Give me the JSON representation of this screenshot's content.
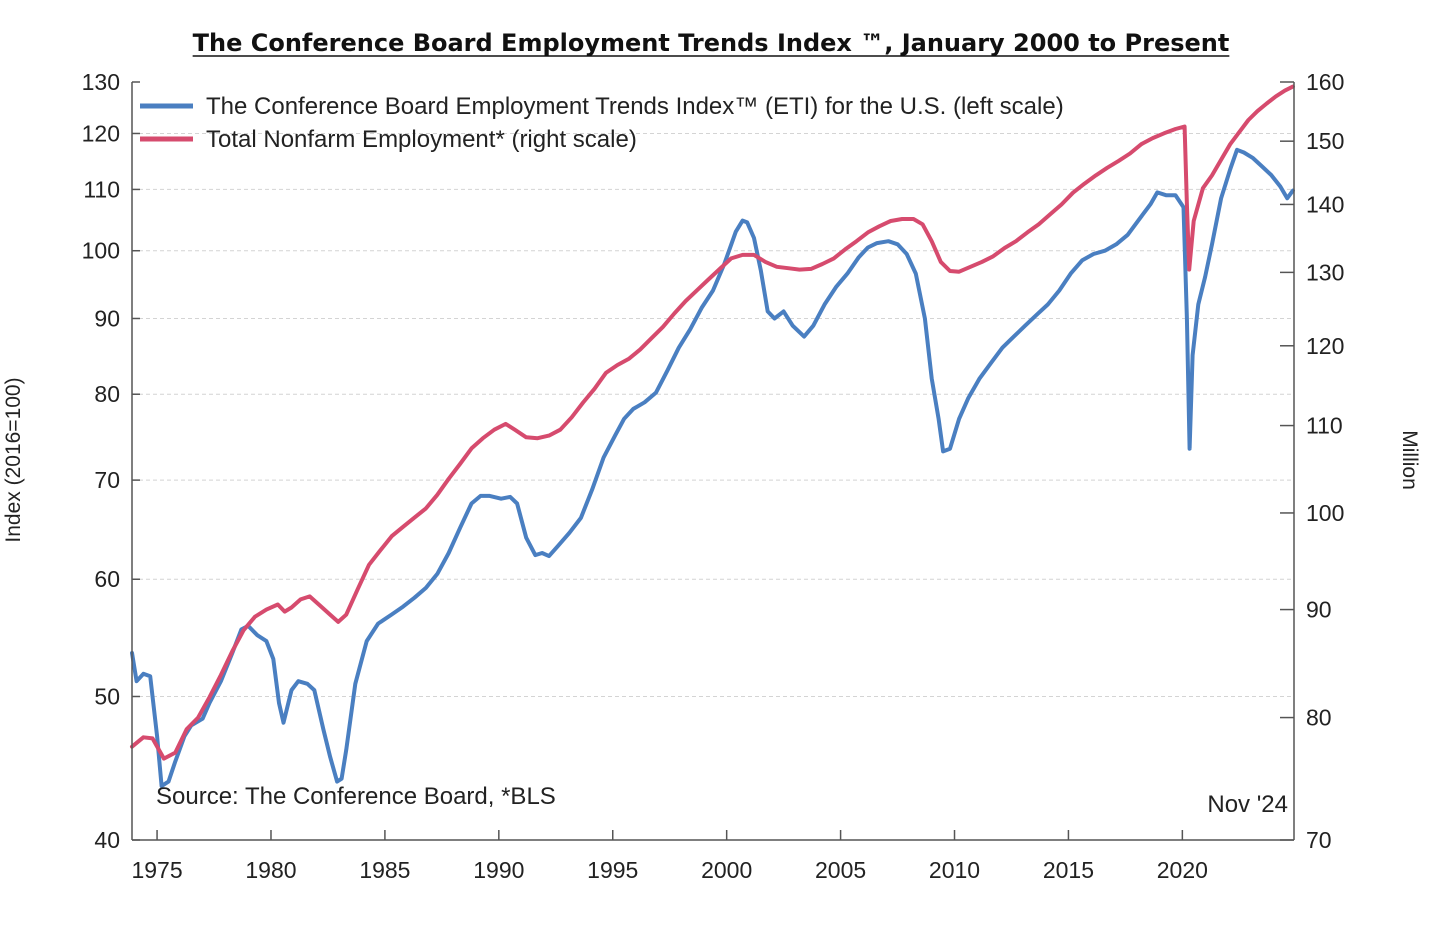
{
  "chart_data": {
    "type": "line",
    "title": "The Conference Board Employment Trends Index ™, January 2000 to Present",
    "ylabel": "Index (2016=100)",
    "y2label": "Million",
    "xlim": [
      1973.9,
      2024.9
    ],
    "ylim": [
      40,
      130
    ],
    "y2lim": [
      70,
      160
    ],
    "yscale": "log",
    "y2scale": "log",
    "grid": true,
    "legend_position": "top-left",
    "x_ticks": [
      1975,
      1980,
      1985,
      1990,
      1995,
      2000,
      2005,
      2010,
      2015,
      2020
    ],
    "y_ticks": [
      40,
      50,
      60,
      70,
      80,
      90,
      100,
      110,
      120,
      130
    ],
    "y2_ticks": [
      70,
      80,
      90,
      100,
      110,
      120,
      130,
      140,
      150,
      160
    ],
    "series": [
      {
        "name": "The Conference Board Employment Trends Index™ (ETI) for the U.S. (left scale)",
        "axis": "left",
        "color": "#4a7fc1",
        "points": [
          [
            1973.9,
            53.5
          ],
          [
            1974.1,
            51.2
          ],
          [
            1974.4,
            51.8
          ],
          [
            1974.7,
            51.6
          ],
          [
            1975.0,
            47.0
          ],
          [
            1975.2,
            43.5
          ],
          [
            1975.5,
            43.8
          ],
          [
            1975.8,
            45.2
          ],
          [
            1976.2,
            47.0
          ],
          [
            1976.5,
            47.8
          ],
          [
            1977.0,
            48.3
          ],
          [
            1977.3,
            49.5
          ],
          [
            1977.8,
            51.2
          ],
          [
            1978.3,
            53.5
          ],
          [
            1978.7,
            55.5
          ],
          [
            1979.0,
            55.8
          ],
          [
            1979.4,
            55.0
          ],
          [
            1979.8,
            54.5
          ],
          [
            1980.1,
            53.0
          ],
          [
            1980.35,
            49.5
          ],
          [
            1980.55,
            48.0
          ],
          [
            1980.9,
            50.5
          ],
          [
            1981.2,
            51.2
          ],
          [
            1981.6,
            51.0
          ],
          [
            1981.9,
            50.5
          ],
          [
            1982.3,
            47.5
          ],
          [
            1982.6,
            45.5
          ],
          [
            1982.9,
            43.8
          ],
          [
            1983.1,
            44.0
          ],
          [
            1983.3,
            46.0
          ],
          [
            1983.7,
            51.0
          ],
          [
            1984.2,
            54.5
          ],
          [
            1984.7,
            56.0
          ],
          [
            1985.3,
            56.8
          ],
          [
            1985.8,
            57.5
          ],
          [
            1986.3,
            58.3
          ],
          [
            1986.8,
            59.2
          ],
          [
            1987.3,
            60.5
          ],
          [
            1987.8,
            62.5
          ],
          [
            1988.3,
            65.0
          ],
          [
            1988.8,
            67.5
          ],
          [
            1989.2,
            68.3
          ],
          [
            1989.6,
            68.3
          ],
          [
            1990.1,
            68.0
          ],
          [
            1990.5,
            68.2
          ],
          [
            1990.8,
            67.5
          ],
          [
            1991.2,
            64.0
          ],
          [
            1991.6,
            62.3
          ],
          [
            1991.9,
            62.5
          ],
          [
            1992.2,
            62.2
          ],
          [
            1992.6,
            63.2
          ],
          [
            1993.1,
            64.5
          ],
          [
            1993.6,
            66.0
          ],
          [
            1994.1,
            69.0
          ],
          [
            1994.6,
            72.5
          ],
          [
            1995.1,
            75.0
          ],
          [
            1995.5,
            77.0
          ],
          [
            1995.9,
            78.2
          ],
          [
            1996.4,
            79.0
          ],
          [
            1996.9,
            80.2
          ],
          [
            1997.4,
            83.0
          ],
          [
            1997.9,
            86.0
          ],
          [
            1998.4,
            88.5
          ],
          [
            1998.9,
            91.5
          ],
          [
            1999.4,
            94.0
          ],
          [
            1999.9,
            98.0
          ],
          [
            2000.4,
            103.0
          ],
          [
            2000.7,
            104.8
          ],
          [
            2000.9,
            104.5
          ],
          [
            2001.2,
            102.0
          ],
          [
            2001.5,
            97.0
          ],
          [
            2001.8,
            91.0
          ],
          [
            2002.1,
            90.0
          ],
          [
            2002.5,
            91.0
          ],
          [
            2002.9,
            89.0
          ],
          [
            2003.4,
            87.5
          ],
          [
            2003.8,
            89.0
          ],
          [
            2004.3,
            92.0
          ],
          [
            2004.8,
            94.5
          ],
          [
            2005.3,
            96.5
          ],
          [
            2005.8,
            99.0
          ],
          [
            2006.2,
            100.5
          ],
          [
            2006.6,
            101.2
          ],
          [
            2007.1,
            101.5
          ],
          [
            2007.5,
            101.0
          ],
          [
            2007.9,
            99.5
          ],
          [
            2008.3,
            96.5
          ],
          [
            2008.7,
            90.0
          ],
          [
            2009.0,
            82.0
          ],
          [
            2009.3,
            77.0
          ],
          [
            2009.5,
            73.2
          ],
          [
            2009.8,
            73.5
          ],
          [
            2010.2,
            77.0
          ],
          [
            2010.6,
            79.5
          ],
          [
            2011.1,
            82.0
          ],
          [
            2011.6,
            84.0
          ],
          [
            2012.1,
            86.0
          ],
          [
            2012.6,
            87.5
          ],
          [
            2013.1,
            89.0
          ],
          [
            2013.6,
            90.5
          ],
          [
            2014.1,
            92.0
          ],
          [
            2014.6,
            94.0
          ],
          [
            2015.1,
            96.5
          ],
          [
            2015.6,
            98.5
          ],
          [
            2016.1,
            99.5
          ],
          [
            2016.6,
            100.0
          ],
          [
            2017.1,
            101.0
          ],
          [
            2017.6,
            102.5
          ],
          [
            2018.1,
            105.0
          ],
          [
            2018.6,
            107.5
          ],
          [
            2018.9,
            109.5
          ],
          [
            2019.3,
            109.0
          ],
          [
            2019.7,
            109.0
          ],
          [
            2020.05,
            107.0
          ],
          [
            2020.2,
            90.0
          ],
          [
            2020.32,
            73.5
          ],
          [
            2020.45,
            85.0
          ],
          [
            2020.7,
            92.0
          ],
          [
            2021.0,
            96.0
          ],
          [
            2021.3,
            101.0
          ],
          [
            2021.7,
            108.5
          ],
          [
            2022.1,
            113.5
          ],
          [
            2022.4,
            117.0
          ],
          [
            2022.7,
            116.5
          ],
          [
            2023.1,
            115.5
          ],
          [
            2023.5,
            114.0
          ],
          [
            2023.9,
            112.5
          ],
          [
            2024.3,
            110.5
          ],
          [
            2024.6,
            108.5
          ],
          [
            2024.85,
            109.8
          ]
        ]
      },
      {
        "name": "Total Nonfarm Employment* (right scale)",
        "axis": "right",
        "color": "#d64b6e",
        "points": [
          [
            1973.9,
            77.5
          ],
          [
            1974.4,
            78.3
          ],
          [
            1974.8,
            78.2
          ],
          [
            1975.3,
            76.5
          ],
          [
            1975.8,
            77.0
          ],
          [
            1976.3,
            79.0
          ],
          [
            1976.8,
            80.0
          ],
          [
            1977.3,
            81.8
          ],
          [
            1977.8,
            83.8
          ],
          [
            1978.3,
            86.0
          ],
          [
            1978.8,
            88.0
          ],
          [
            1979.3,
            89.3
          ],
          [
            1979.8,
            90.0
          ],
          [
            1980.3,
            90.5
          ],
          [
            1980.6,
            89.8
          ],
          [
            1980.9,
            90.2
          ],
          [
            1981.3,
            91.0
          ],
          [
            1981.7,
            91.3
          ],
          [
            1982.1,
            90.5
          ],
          [
            1982.6,
            89.5
          ],
          [
            1982.95,
            88.8
          ],
          [
            1983.3,
            89.5
          ],
          [
            1983.8,
            92.0
          ],
          [
            1984.3,
            94.5
          ],
          [
            1984.8,
            96.0
          ],
          [
            1985.3,
            97.5
          ],
          [
            1985.8,
            98.5
          ],
          [
            1986.3,
            99.5
          ],
          [
            1986.8,
            100.5
          ],
          [
            1987.3,
            102.0
          ],
          [
            1987.8,
            103.8
          ],
          [
            1988.3,
            105.5
          ],
          [
            1988.8,
            107.3
          ],
          [
            1989.3,
            108.5
          ],
          [
            1989.8,
            109.5
          ],
          [
            1990.3,
            110.2
          ],
          [
            1990.7,
            109.5
          ],
          [
            1991.2,
            108.6
          ],
          [
            1991.7,
            108.5
          ],
          [
            1992.2,
            108.8
          ],
          [
            1992.7,
            109.5
          ],
          [
            1993.2,
            111.0
          ],
          [
            1993.7,
            112.8
          ],
          [
            1994.2,
            114.5
          ],
          [
            1994.7,
            116.5
          ],
          [
            1995.2,
            117.5
          ],
          [
            1995.7,
            118.3
          ],
          [
            1996.2,
            119.5
          ],
          [
            1996.7,
            121.0
          ],
          [
            1997.2,
            122.5
          ],
          [
            1997.7,
            124.3
          ],
          [
            1998.2,
            126.0
          ],
          [
            1998.7,
            127.5
          ],
          [
            1999.2,
            129.0
          ],
          [
            1999.7,
            130.5
          ],
          [
            2000.2,
            132.0
          ],
          [
            2000.7,
            132.5
          ],
          [
            2001.2,
            132.5
          ],
          [
            2001.7,
            131.5
          ],
          [
            2002.2,
            130.8
          ],
          [
            2002.7,
            130.6
          ],
          [
            2003.2,
            130.4
          ],
          [
            2003.7,
            130.5
          ],
          [
            2004.2,
            131.2
          ],
          [
            2004.7,
            132.0
          ],
          [
            2005.2,
            133.3
          ],
          [
            2005.7,
            134.5
          ],
          [
            2006.2,
            135.8
          ],
          [
            2006.7,
            136.7
          ],
          [
            2007.2,
            137.5
          ],
          [
            2007.7,
            137.8
          ],
          [
            2008.2,
            137.8
          ],
          [
            2008.6,
            137.0
          ],
          [
            2009.0,
            134.5
          ],
          [
            2009.4,
            131.5
          ],
          [
            2009.8,
            130.2
          ],
          [
            2010.2,
            130.1
          ],
          [
            2010.7,
            130.8
          ],
          [
            2011.2,
            131.5
          ],
          [
            2011.7,
            132.3
          ],
          [
            2012.2,
            133.5
          ],
          [
            2012.7,
            134.5
          ],
          [
            2013.2,
            135.8
          ],
          [
            2013.7,
            137.0
          ],
          [
            2014.2,
            138.5
          ],
          [
            2014.7,
            140.0
          ],
          [
            2015.2,
            141.8
          ],
          [
            2015.7,
            143.2
          ],
          [
            2016.2,
            144.5
          ],
          [
            2016.7,
            145.7
          ],
          [
            2017.2,
            146.8
          ],
          [
            2017.7,
            148.0
          ],
          [
            2018.2,
            149.5
          ],
          [
            2018.7,
            150.5
          ],
          [
            2019.2,
            151.3
          ],
          [
            2019.7,
            152.0
          ],
          [
            2020.1,
            152.4
          ],
          [
            2020.2,
            140.0
          ],
          [
            2020.3,
            130.4
          ],
          [
            2020.5,
            137.5
          ],
          [
            2020.9,
            142.5
          ],
          [
            2021.3,
            144.5
          ],
          [
            2021.7,
            147.0
          ],
          [
            2022.1,
            149.5
          ],
          [
            2022.5,
            151.5
          ],
          [
            2022.9,
            153.5
          ],
          [
            2023.3,
            155.0
          ],
          [
            2023.7,
            156.3
          ],
          [
            2024.1,
            157.5
          ],
          [
            2024.5,
            158.5
          ],
          [
            2024.85,
            159.2
          ]
        ]
      }
    ]
  },
  "annotations": {
    "source": "Source: The Conference Board, *BLS",
    "date": "Nov '24"
  }
}
